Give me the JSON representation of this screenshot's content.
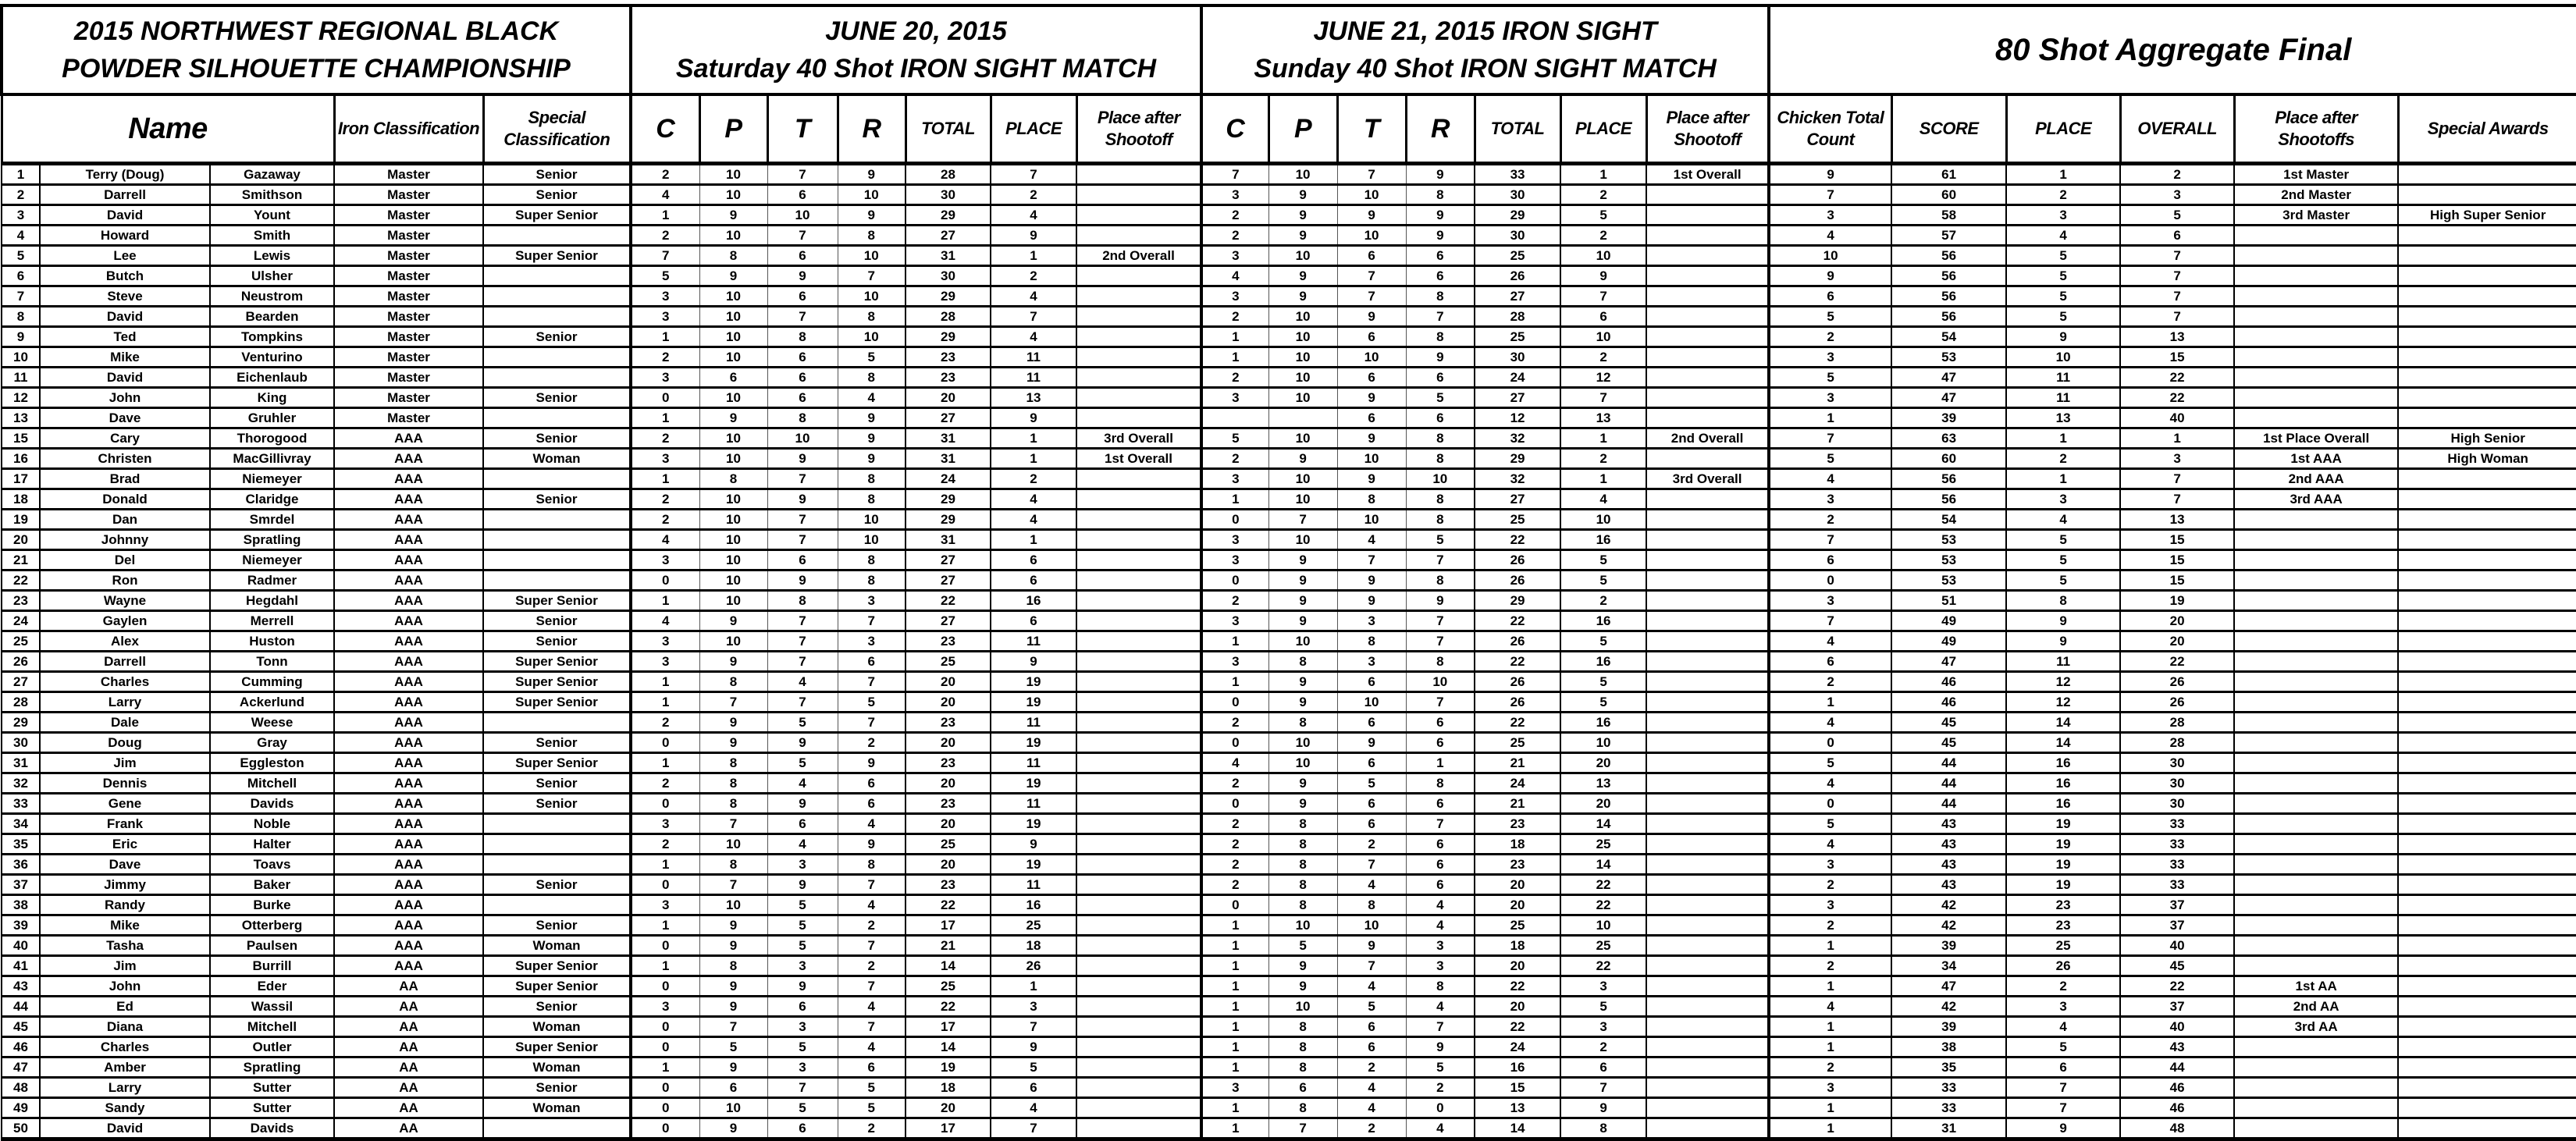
{
  "header": {
    "event_title_line1": "2015 NORTHWEST REGIONAL BLACK",
    "event_title_line2": "POWDER SILHOUETTE CHAMPIONSHIP",
    "day1_line1": "JUNE 20, 2015",
    "day1_line2": "Saturday 40 Shot IRON SIGHT MATCH",
    "day2_line1": "JUNE 21, 2015 IRON SIGHT",
    "day2_line2": "Sunday 40 Shot IRON SIGHT MATCH",
    "aggregate_title": "80 Shot Aggregate Final"
  },
  "columns": {
    "name": "Name",
    "iron_classification": "Iron Classification",
    "special_classification": "Special Classification",
    "day": [
      "C",
      "P",
      "T",
      "R",
      "TOTAL",
      "PLACE",
      "Place after Shootoff"
    ],
    "aggregate": [
      "Chicken Total Count",
      "SCORE",
      "PLACE",
      "OVERALL",
      "Place after Shootoffs",
      "Special Awards"
    ]
  },
  "rows": [
    [
      "1",
      "Terry (Doug)",
      "Gazaway",
      "Master",
      "Senior",
      "2",
      "10",
      "7",
      "9",
      "28",
      "7",
      "",
      "7",
      "10",
      "7",
      "9",
      "33",
      "1",
      "1st Overall",
      "9",
      "61",
      "1",
      "2",
      "1st Master",
      ""
    ],
    [
      "2",
      "Darrell",
      "Smithson",
      "Master",
      "Senior",
      "4",
      "10",
      "6",
      "10",
      "30",
      "2",
      "",
      "3",
      "9",
      "10",
      "8",
      "30",
      "2",
      "",
      "7",
      "60",
      "2",
      "3",
      "2nd Master",
      ""
    ],
    [
      "3",
      "David",
      "Yount",
      "Master",
      "Super Senior",
      "1",
      "9",
      "10",
      "9",
      "29",
      "4",
      "",
      "2",
      "9",
      "9",
      "9",
      "29",
      "5",
      "",
      "3",
      "58",
      "3",
      "5",
      "3rd Master",
      "High Super Senior"
    ],
    [
      "4",
      "Howard",
      "Smith",
      "Master",
      "",
      "2",
      "10",
      "7",
      "8",
      "27",
      "9",
      "",
      "2",
      "9",
      "10",
      "9",
      "30",
      "2",
      "",
      "4",
      "57",
      "4",
      "6",
      "",
      ""
    ],
    [
      "5",
      "Lee",
      "Lewis",
      "Master",
      "Super Senior",
      "7",
      "8",
      "6",
      "10",
      "31",
      "1",
      "2nd Overall",
      "3",
      "10",
      "6",
      "6",
      "25",
      "10",
      "",
      "10",
      "56",
      "5",
      "7",
      "",
      ""
    ],
    [
      "6",
      "Butch",
      "Ulsher",
      "Master",
      "",
      "5",
      "9",
      "9",
      "7",
      "30",
      "2",
      "",
      "4",
      "9",
      "7",
      "6",
      "26",
      "9",
      "",
      "9",
      "56",
      "5",
      "7",
      "",
      ""
    ],
    [
      "7",
      "Steve",
      "Neustrom",
      "Master",
      "",
      "3",
      "10",
      "6",
      "10",
      "29",
      "4",
      "",
      "3",
      "9",
      "7",
      "8",
      "27",
      "7",
      "",
      "6",
      "56",
      "5",
      "7",
      "",
      ""
    ],
    [
      "8",
      "David",
      "Bearden",
      "Master",
      "",
      "3",
      "10",
      "7",
      "8",
      "28",
      "7",
      "",
      "2",
      "10",
      "9",
      "7",
      "28",
      "6",
      "",
      "5",
      "56",
      "5",
      "7",
      "",
      ""
    ],
    [
      "9",
      "Ted",
      "Tompkins",
      "Master",
      "Senior",
      "1",
      "10",
      "8",
      "10",
      "29",
      "4",
      "",
      "1",
      "10",
      "6",
      "8",
      "25",
      "10",
      "",
      "2",
      "54",
      "9",
      "13",
      "",
      ""
    ],
    [
      "10",
      "Mike",
      "Venturino",
      "Master",
      "",
      "2",
      "10",
      "6",
      "5",
      "23",
      "11",
      "",
      "1",
      "10",
      "10",
      "9",
      "30",
      "2",
      "",
      "3",
      "53",
      "10",
      "15",
      "",
      ""
    ],
    [
      "11",
      "David",
      "Eichenlaub",
      "Master",
      "",
      "3",
      "6",
      "6",
      "8",
      "23",
      "11",
      "",
      "2",
      "10",
      "6",
      "6",
      "24",
      "12",
      "",
      "5",
      "47",
      "11",
      "22",
      "",
      ""
    ],
    [
      "12",
      "John",
      "King",
      "Master",
      "Senior",
      "0",
      "10",
      "6",
      "4",
      "20",
      "13",
      "",
      "3",
      "10",
      "9",
      "5",
      "27",
      "7",
      "",
      "3",
      "47",
      "11",
      "22",
      "",
      ""
    ],
    [
      "13",
      "Dave",
      "Gruhler",
      "Master",
      "",
      "1",
      "9",
      "8",
      "9",
      "27",
      "9",
      "",
      "",
      "",
      "6",
      "6",
      "12",
      "13",
      "",
      "1",
      "39",
      "13",
      "40",
      "",
      ""
    ],
    [
      "15",
      "Cary",
      "Thorogood",
      "AAA",
      "Senior",
      "2",
      "10",
      "10",
      "9",
      "31",
      "1",
      "3rd Overall",
      "5",
      "10",
      "9",
      "8",
      "32",
      "1",
      "2nd Overall",
      "7",
      "63",
      "1",
      "1",
      "1st Place Overall",
      "High Senior"
    ],
    [
      "16",
      "Christen",
      "MacGillivray",
      "AAA",
      "Woman",
      "3",
      "10",
      "9",
      "9",
      "31",
      "1",
      "1st Overall",
      "2",
      "9",
      "10",
      "8",
      "29",
      "2",
      "",
      "5",
      "60",
      "2",
      "3",
      "1st AAA",
      "High Woman"
    ],
    [
      "17",
      "Brad",
      "Niemeyer",
      "AAA",
      "",
      "1",
      "8",
      "7",
      "8",
      "24",
      "2",
      "",
      "3",
      "10",
      "9",
      "10",
      "32",
      "1",
      "3rd Overall",
      "4",
      "56",
      "1",
      "7",
      "2nd AAA",
      ""
    ],
    [
      "18",
      "Donald",
      "Claridge",
      "AAA",
      "Senior",
      "2",
      "10",
      "9",
      "8",
      "29",
      "4",
      "",
      "1",
      "10",
      "8",
      "8",
      "27",
      "4",
      "",
      "3",
      "56",
      "3",
      "7",
      "3rd AAA",
      ""
    ],
    [
      "19",
      "Dan",
      "Smrdel",
      "AAA",
      "",
      "2",
      "10",
      "7",
      "10",
      "29",
      "4",
      "",
      "0",
      "7",
      "10",
      "8",
      "25",
      "10",
      "",
      "2",
      "54",
      "4",
      "13",
      "",
      ""
    ],
    [
      "20",
      "Johnny",
      "Spratling",
      "AAA",
      "",
      "4",
      "10",
      "7",
      "10",
      "31",
      "1",
      "",
      "3",
      "10",
      "4",
      "5",
      "22",
      "16",
      "",
      "7",
      "53",
      "5",
      "15",
      "",
      ""
    ],
    [
      "21",
      "Del",
      "Niemeyer",
      "AAA",
      "",
      "3",
      "10",
      "6",
      "8",
      "27",
      "6",
      "",
      "3",
      "9",
      "7",
      "7",
      "26",
      "5",
      "",
      "6",
      "53",
      "5",
      "15",
      "",
      ""
    ],
    [
      "22",
      "Ron",
      "Radmer",
      "AAA",
      "",
      "0",
      "10",
      "9",
      "8",
      "27",
      "6",
      "",
      "0",
      "9",
      "9",
      "8",
      "26",
      "5",
      "",
      "0",
      "53",
      "5",
      "15",
      "",
      ""
    ],
    [
      "23",
      "Wayne",
      "Hegdahl",
      "AAA",
      "Super Senior",
      "1",
      "10",
      "8",
      "3",
      "22",
      "16",
      "",
      "2",
      "9",
      "9",
      "9",
      "29",
      "2",
      "",
      "3",
      "51",
      "8",
      "19",
      "",
      ""
    ],
    [
      "24",
      "Gaylen",
      "Merrell",
      "AAA",
      "Senior",
      "4",
      "9",
      "7",
      "7",
      "27",
      "6",
      "",
      "3",
      "9",
      "3",
      "7",
      "22",
      "16",
      "",
      "7",
      "49",
      "9",
      "20",
      "",
      ""
    ],
    [
      "25",
      "Alex",
      "Huston",
      "AAA",
      "Senior",
      "3",
      "10",
      "7",
      "3",
      "23",
      "11",
      "",
      "1",
      "10",
      "8",
      "7",
      "26",
      "5",
      "",
      "4",
      "49",
      "9",
      "20",
      "",
      ""
    ],
    [
      "26",
      "Darrell",
      "Tonn",
      "AAA",
      "Super Senior",
      "3",
      "9",
      "7",
      "6",
      "25",
      "9",
      "",
      "3",
      "8",
      "3",
      "8",
      "22",
      "16",
      "",
      "6",
      "47",
      "11",
      "22",
      "",
      ""
    ],
    [
      "27",
      "Charles",
      "Cumming",
      "AAA",
      "Super Senior",
      "1",
      "8",
      "4",
      "7",
      "20",
      "19",
      "",
      "1",
      "9",
      "6",
      "10",
      "26",
      "5",
      "",
      "2",
      "46",
      "12",
      "26",
      "",
      ""
    ],
    [
      "28",
      "Larry",
      "Ackerlund",
      "AAA",
      "Super Senior",
      "1",
      "7",
      "7",
      "5",
      "20",
      "19",
      "",
      "0",
      "9",
      "10",
      "7",
      "26",
      "5",
      "",
      "1",
      "46",
      "12",
      "26",
      "",
      ""
    ],
    [
      "29",
      "Dale",
      "Weese",
      "AAA",
      "",
      "2",
      "9",
      "5",
      "7",
      "23",
      "11",
      "",
      "2",
      "8",
      "6",
      "6",
      "22",
      "16",
      "",
      "4",
      "45",
      "14",
      "28",
      "",
      ""
    ],
    [
      "30",
      "Doug",
      "Gray",
      "AAA",
      "Senior",
      "0",
      "9",
      "9",
      "2",
      "20",
      "19",
      "",
      "0",
      "10",
      "9",
      "6",
      "25",
      "10",
      "",
      "0",
      "45",
      "14",
      "28",
      "",
      ""
    ],
    [
      "31",
      "Jim",
      "Eggleston",
      "AAA",
      "Super Senior",
      "1",
      "8",
      "5",
      "9",
      "23",
      "11",
      "",
      "4",
      "10",
      "6",
      "1",
      "21",
      "20",
      "",
      "5",
      "44",
      "16",
      "30",
      "",
      ""
    ],
    [
      "32",
      "Dennis",
      "Mitchell",
      "AAA",
      "Senior",
      "2",
      "8",
      "4",
      "6",
      "20",
      "19",
      "",
      "2",
      "9",
      "5",
      "8",
      "24",
      "13",
      "",
      "4",
      "44",
      "16",
      "30",
      "",
      ""
    ],
    [
      "33",
      "Gene",
      "Davids",
      "AAA",
      "Senior",
      "0",
      "8",
      "9",
      "6",
      "23",
      "11",
      "",
      "0",
      "9",
      "6",
      "6",
      "21",
      "20",
      "",
      "0",
      "44",
      "16",
      "30",
      "",
      ""
    ],
    [
      "34",
      "Frank",
      "Noble",
      "AAA",
      "",
      "3",
      "7",
      "6",
      "4",
      "20",
      "19",
      "",
      "2",
      "8",
      "6",
      "7",
      "23",
      "14",
      "",
      "5",
      "43",
      "19",
      "33",
      "",
      ""
    ],
    [
      "35",
      "Eric",
      "Halter",
      "AAA",
      "",
      "2",
      "10",
      "4",
      "9",
      "25",
      "9",
      "",
      "2",
      "8",
      "2",
      "6",
      "18",
      "25",
      "",
      "4",
      "43",
      "19",
      "33",
      "",
      ""
    ],
    [
      "36",
      "Dave",
      "Toavs",
      "AAA",
      "",
      "1",
      "8",
      "3",
      "8",
      "20",
      "19",
      "",
      "2",
      "8",
      "7",
      "6",
      "23",
      "14",
      "",
      "3",
      "43",
      "19",
      "33",
      "",
      ""
    ],
    [
      "37",
      "Jimmy",
      "Baker",
      "AAA",
      "Senior",
      "0",
      "7",
      "9",
      "7",
      "23",
      "11",
      "",
      "2",
      "8",
      "4",
      "6",
      "20",
      "22",
      "",
      "2",
      "43",
      "19",
      "33",
      "",
      ""
    ],
    [
      "38",
      "Randy",
      "Burke",
      "AAA",
      "",
      "3",
      "10",
      "5",
      "4",
      "22",
      "16",
      "",
      "0",
      "8",
      "8",
      "4",
      "20",
      "22",
      "",
      "3",
      "42",
      "23",
      "37",
      "",
      ""
    ],
    [
      "39",
      "Mike",
      "Otterberg",
      "AAA",
      "Senior",
      "1",
      "9",
      "5",
      "2",
      "17",
      "25",
      "",
      "1",
      "10",
      "10",
      "4",
      "25",
      "10",
      "",
      "2",
      "42",
      "23",
      "37",
      "",
      ""
    ],
    [
      "40",
      "Tasha",
      "Paulsen",
      "AAA",
      "Woman",
      "0",
      "9",
      "5",
      "7",
      "21",
      "18",
      "",
      "1",
      "5",
      "9",
      "3",
      "18",
      "25",
      "",
      "1",
      "39",
      "25",
      "40",
      "",
      ""
    ],
    [
      "41",
      "Jim",
      "Burrill",
      "AAA",
      "Super Senior",
      "1",
      "8",
      "3",
      "2",
      "14",
      "26",
      "",
      "1",
      "9",
      "7",
      "3",
      "20",
      "22",
      "",
      "2",
      "34",
      "26",
      "45",
      "",
      ""
    ],
    [
      "43",
      "John",
      "Eder",
      "AA",
      "Super Senior",
      "0",
      "9",
      "9",
      "7",
      "25",
      "1",
      "",
      "1",
      "9",
      "4",
      "8",
      "22",
      "3",
      "",
      "1",
      "47",
      "2",
      "22",
      "1st AA",
      ""
    ],
    [
      "44",
      "Ed",
      "Wassil",
      "AA",
      "Senior",
      "3",
      "9",
      "6",
      "4",
      "22",
      "3",
      "",
      "1",
      "10",
      "5",
      "4",
      "20",
      "5",
      "",
      "4",
      "42",
      "3",
      "37",
      "2nd AA",
      ""
    ],
    [
      "45",
      "Diana",
      "Mitchell",
      "AA",
      "Woman",
      "0",
      "7",
      "3",
      "7",
      "17",
      "7",
      "",
      "1",
      "8",
      "6",
      "7",
      "22",
      "3",
      "",
      "1",
      "39",
      "4",
      "40",
      "3rd AA",
      ""
    ],
    [
      "46",
      "Charles",
      "Outler",
      "AA",
      "Super Senior",
      "0",
      "5",
      "5",
      "4",
      "14",
      "9",
      "",
      "1",
      "8",
      "6",
      "9",
      "24",
      "2",
      "",
      "1",
      "38",
      "5",
      "43",
      "",
      ""
    ],
    [
      "47",
      "Amber",
      "Spratling",
      "AA",
      "Woman",
      "1",
      "9",
      "3",
      "6",
      "19",
      "5",
      "",
      "1",
      "8",
      "2",
      "5",
      "16",
      "6",
      "",
      "2",
      "35",
      "6",
      "44",
      "",
      ""
    ],
    [
      "48",
      "Larry",
      "Sutter",
      "AA",
      "Senior",
      "0",
      "6",
      "7",
      "5",
      "18",
      "6",
      "",
      "3",
      "6",
      "4",
      "2",
      "15",
      "7",
      "",
      "3",
      "33",
      "7",
      "46",
      "",
      ""
    ],
    [
      "49",
      "Sandy",
      "Sutter",
      "AA",
      "Woman",
      "0",
      "10",
      "5",
      "5",
      "20",
      "4",
      "",
      "1",
      "8",
      "4",
      "0",
      "13",
      "9",
      "",
      "1",
      "33",
      "7",
      "46",
      "",
      ""
    ],
    [
      "50",
      "David",
      "Davids",
      "AA",
      "",
      "0",
      "9",
      "6",
      "2",
      "17",
      "7",
      "",
      "1",
      "7",
      "2",
      "4",
      "14",
      "8",
      "",
      "1",
      "31",
      "9",
      "48",
      "",
      ""
    ]
  ]
}
